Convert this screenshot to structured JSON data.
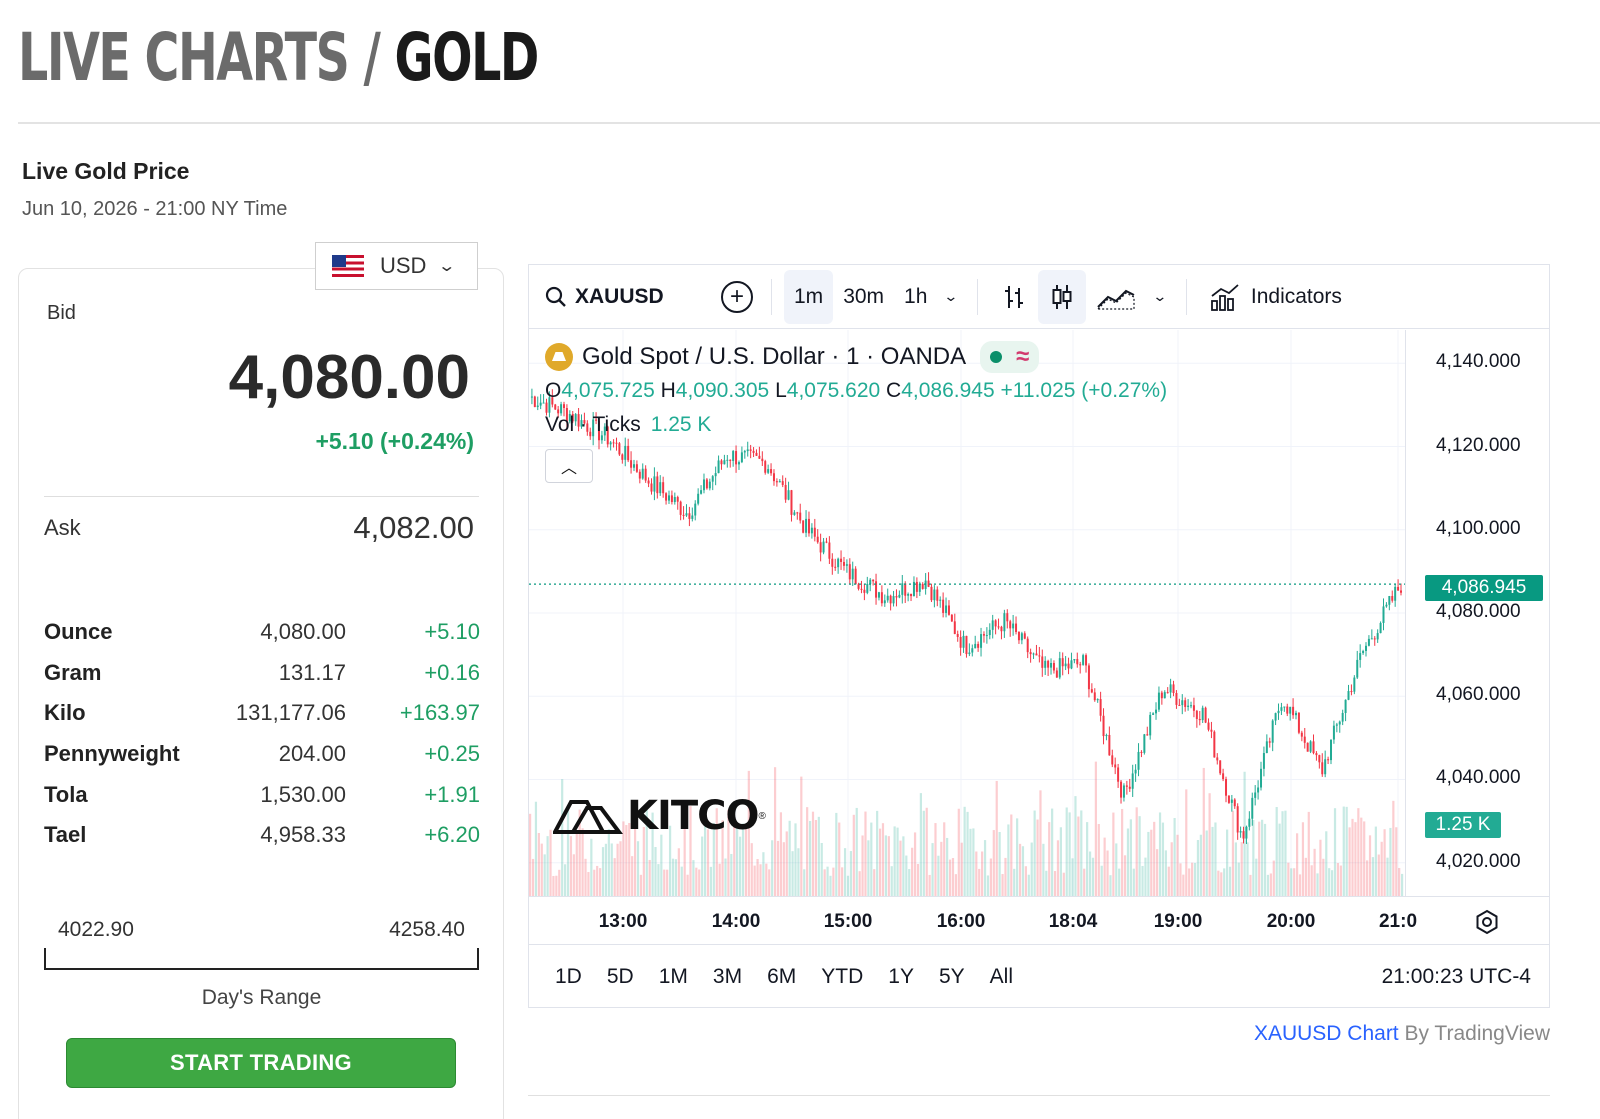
{
  "header": {
    "crumb": "LIVE CHARTS",
    "separator": " / ",
    "current": "GOLD"
  },
  "section": {
    "title": "Live Gold Price",
    "timestamp": "Jun 10, 2026 - 21:00 NY Time"
  },
  "currency": {
    "selected": "USD",
    "flag_icon": "us-flag-icon"
  },
  "bid": {
    "label": "Bid",
    "value": "4,080.00",
    "change": "+5.10 (+0.24%)"
  },
  "ask": {
    "label": "Ask",
    "value": "4,082.00"
  },
  "units": [
    {
      "name": "Ounce",
      "price": "4,080.00",
      "change": "+5.10"
    },
    {
      "name": "Gram",
      "price": "131.17",
      "change": "+0.16"
    },
    {
      "name": "Kilo",
      "price": "131,177.06",
      "change": "+163.97"
    },
    {
      "name": "Pennyweight",
      "price": "204.00",
      "change": "+0.25"
    },
    {
      "name": "Tola",
      "price": "1,530.00",
      "change": "+1.91"
    },
    {
      "name": "Tael",
      "price": "4,958.33",
      "change": "+6.20"
    }
  ],
  "day_range": {
    "low": "4022.90",
    "high": "4258.40",
    "label": "Day's Range"
  },
  "cta": {
    "label": "START TRADING"
  },
  "chart_widget": {
    "symbol": "XAUUSD",
    "intervals": [
      "1m",
      "30m",
      "1h"
    ],
    "active_interval": "1m",
    "indicators_label": "Indicators",
    "title": "Gold Spot / U.S. Dollar · 1 · OANDA",
    "wave_glyph": "≈",
    "ohlc": {
      "o_label": "O",
      "o": "4,075.725",
      "h_label": "H",
      "h": "4,090.305",
      "l_label": "L",
      "l": "4,075.620",
      "c_label": "C",
      "c": "4,086.945",
      "change": "+11.025 (+0.27%)"
    },
    "volume": {
      "label": "Vol · Ticks",
      "value": "1.25 K"
    },
    "last_price": "4,086.945",
    "volume_badge": "1.25 K",
    "watermark": "KITCO",
    "periods": [
      "1D",
      "5D",
      "1M",
      "3M",
      "6M",
      "YTD",
      "1Y",
      "5Y",
      "All"
    ],
    "clock": "21:00:23 UTC-4",
    "accent_up": "#22ab94",
    "accent_down": "#f23645"
  },
  "attribution": {
    "link": "XAUUSD Chart",
    "by": " By TradingView"
  },
  "chart_data": {
    "type": "line",
    "title": "Gold Spot / U.S. Dollar · 1 · OANDA",
    "x_ticks": [
      "13:00",
      "14:00",
      "15:00",
      "16:00",
      "18:04",
      "19:00",
      "20:00",
      "21:0"
    ],
    "y_ticks": [
      "4,140.000",
      "4,120.000",
      "4,100.000",
      "4,080.000",
      "4,060.000",
      "4,040.000",
      "4,020.000"
    ],
    "ylim": [
      4012,
      4148
    ],
    "grid": true,
    "series": [
      {
        "x": [
          "12:00",
          "12:30",
          "13:00",
          "13:30",
          "14:00",
          "14:15",
          "14:30",
          "15:00",
          "15:30",
          "15:45",
          "16:00",
          "16:30",
          "17:00",
          "17:15",
          "18:04",
          "18:30",
          "19:00",
          "19:20",
          "19:40",
          "20:00",
          "20:30",
          "20:45",
          "21:00"
        ],
        "values": [
          4132,
          4128,
          4122,
          4112,
          4104,
          4118,
          4116,
          4100,
          4090,
          4084,
          4088,
          4072,
          4078,
          4066,
          4068,
          4036,
          4062,
          4056,
          4026,
          4060,
          4042,
          4070,
          4086.945
        ]
      }
    ]
  }
}
